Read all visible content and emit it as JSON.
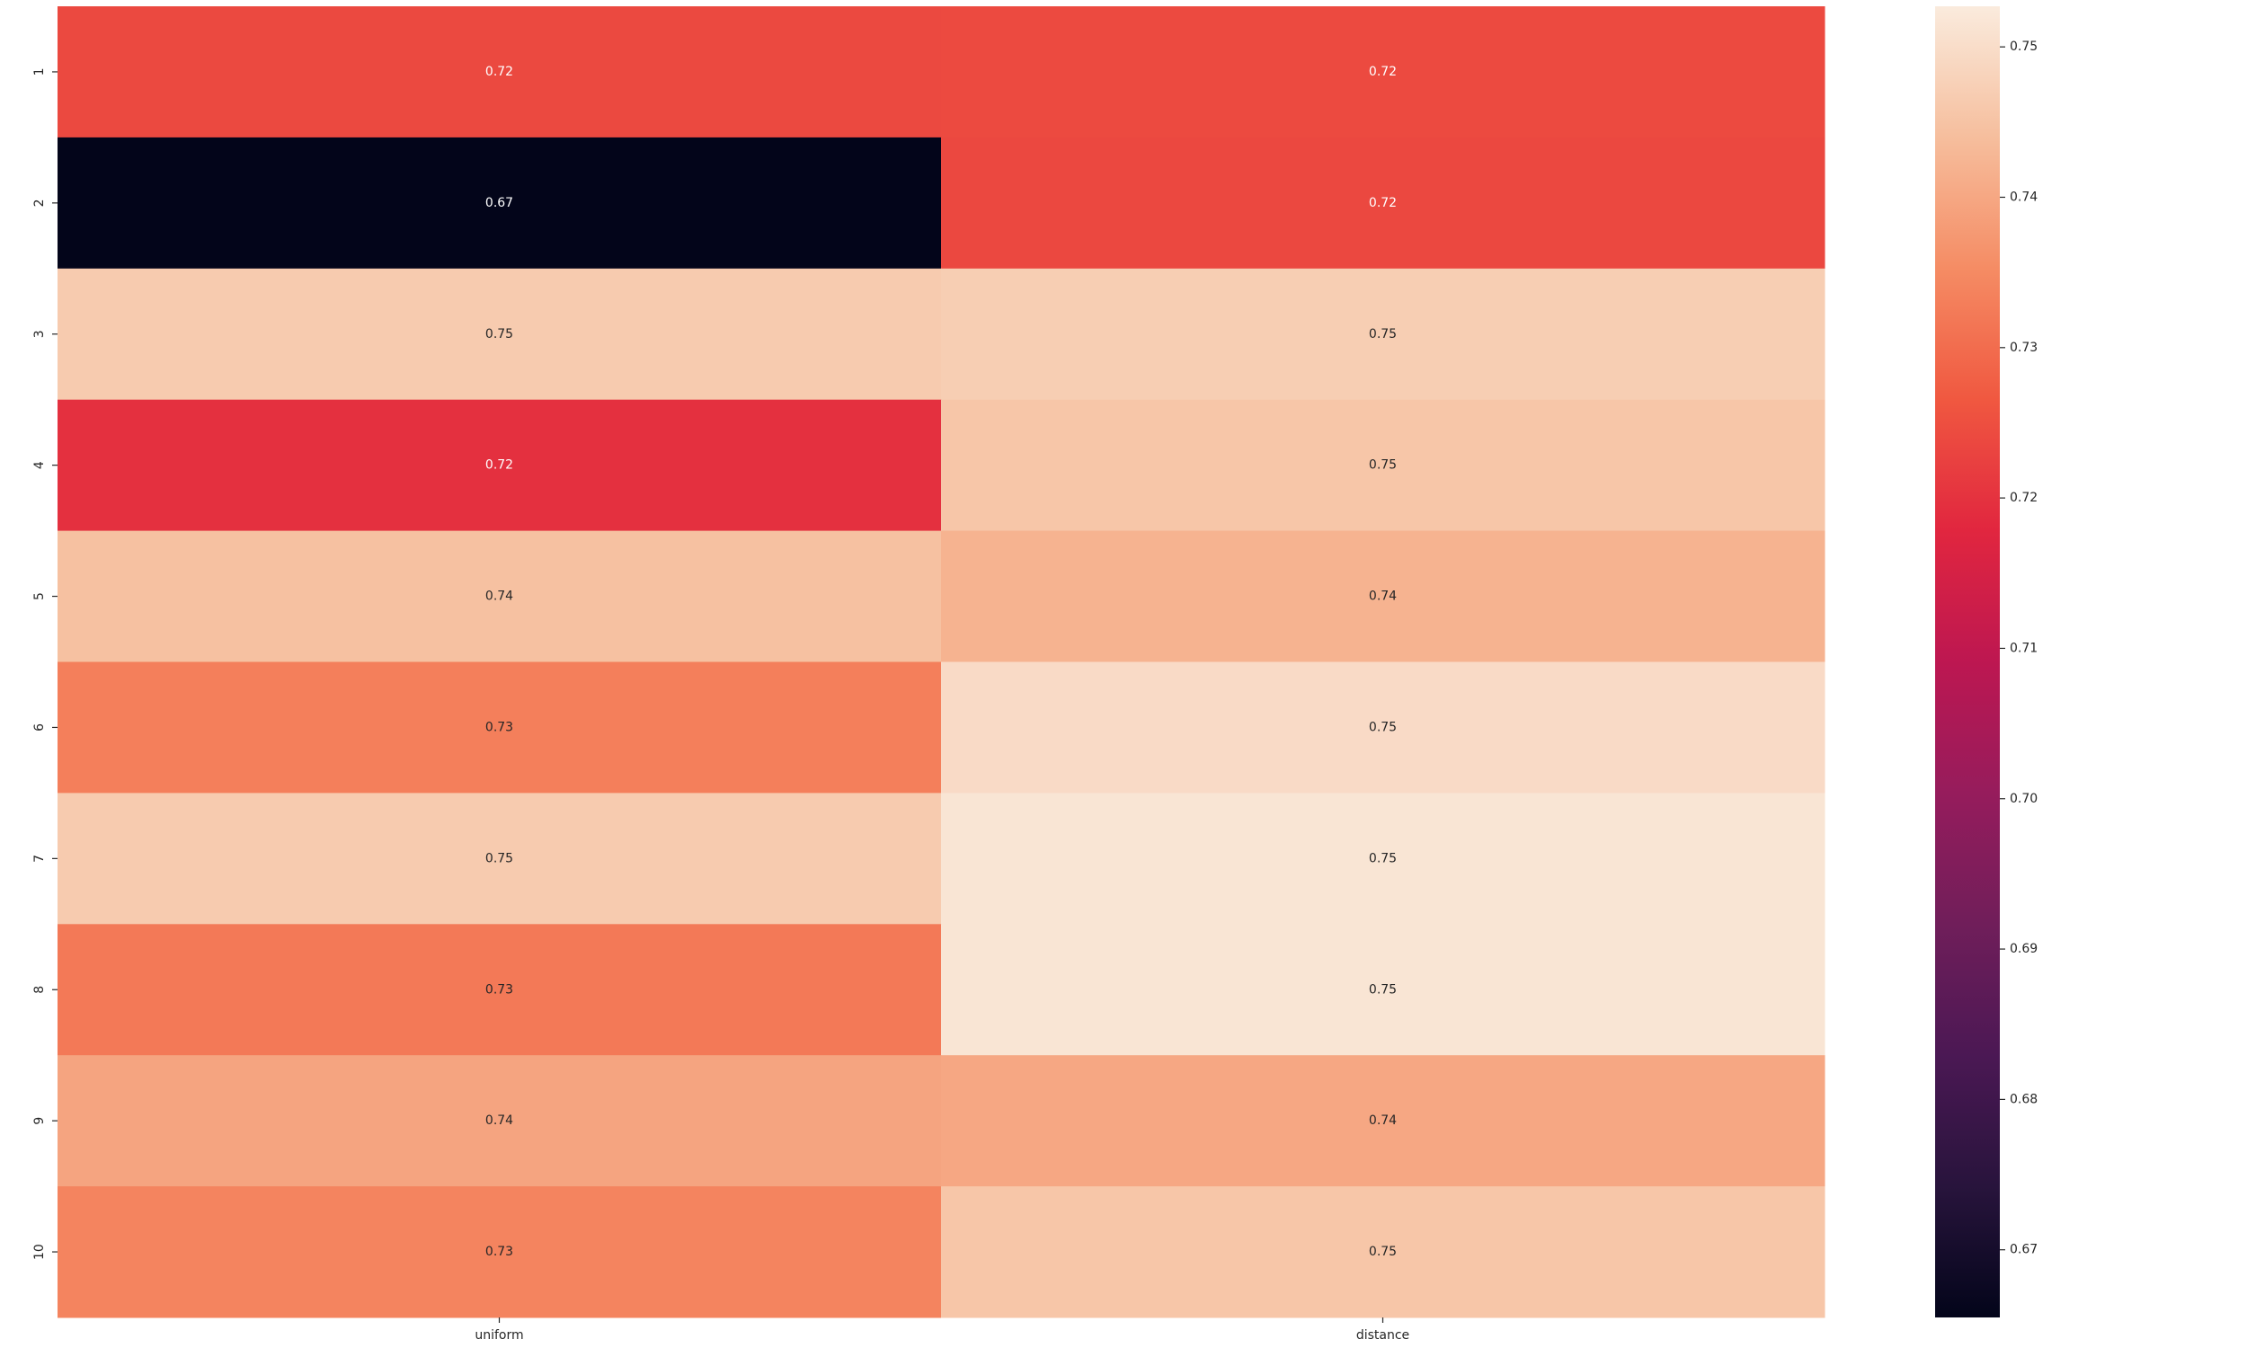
{
  "chart_data": {
    "type": "heatmap",
    "title": "",
    "xlabel": "",
    "ylabel": "",
    "x_categories": [
      "uniform",
      "distance"
    ],
    "y_categories": [
      "1",
      "2",
      "3",
      "4",
      "5",
      "6",
      "7",
      "8",
      "9",
      "10"
    ],
    "values": [
      [
        0.7239,
        0.7241
      ],
      [
        0.6655,
        0.7238
      ],
      [
        0.7465,
        0.747
      ],
      [
        0.7195,
        0.7455
      ],
      [
        0.7445,
        0.742
      ],
      [
        0.733,
        0.7495
      ],
      [
        0.7465,
        0.7515
      ],
      [
        0.732,
        0.7515
      ],
      [
        0.7395,
        0.74
      ],
      [
        0.734,
        0.7455
      ]
    ],
    "cell_labels": [
      [
        "0.72",
        "0.72"
      ],
      [
        "0.67",
        "0.72"
      ],
      [
        "0.75",
        "0.75"
      ],
      [
        "0.72",
        "0.75"
      ],
      [
        "0.74",
        "0.74"
      ],
      [
        "0.73",
        "0.75"
      ],
      [
        "0.75",
        "0.75"
      ],
      [
        "0.73",
        "0.75"
      ],
      [
        "0.74",
        "0.74"
      ],
      [
        "0.73",
        "0.75"
      ]
    ],
    "colorbar": {
      "range": [
        0.6655,
        0.7527
      ],
      "ticks": [
        0.67,
        0.68,
        0.69,
        0.7,
        0.71,
        0.72,
        0.73,
        0.74,
        0.75
      ],
      "tick_labels": [
        "0.67",
        "0.68",
        "0.69",
        "0.70",
        "0.71",
        "0.72",
        "0.73",
        "0.74",
        "0.75"
      ],
      "colormap": "rocket"
    },
    "grid": false,
    "legend": "colorbar-right"
  }
}
